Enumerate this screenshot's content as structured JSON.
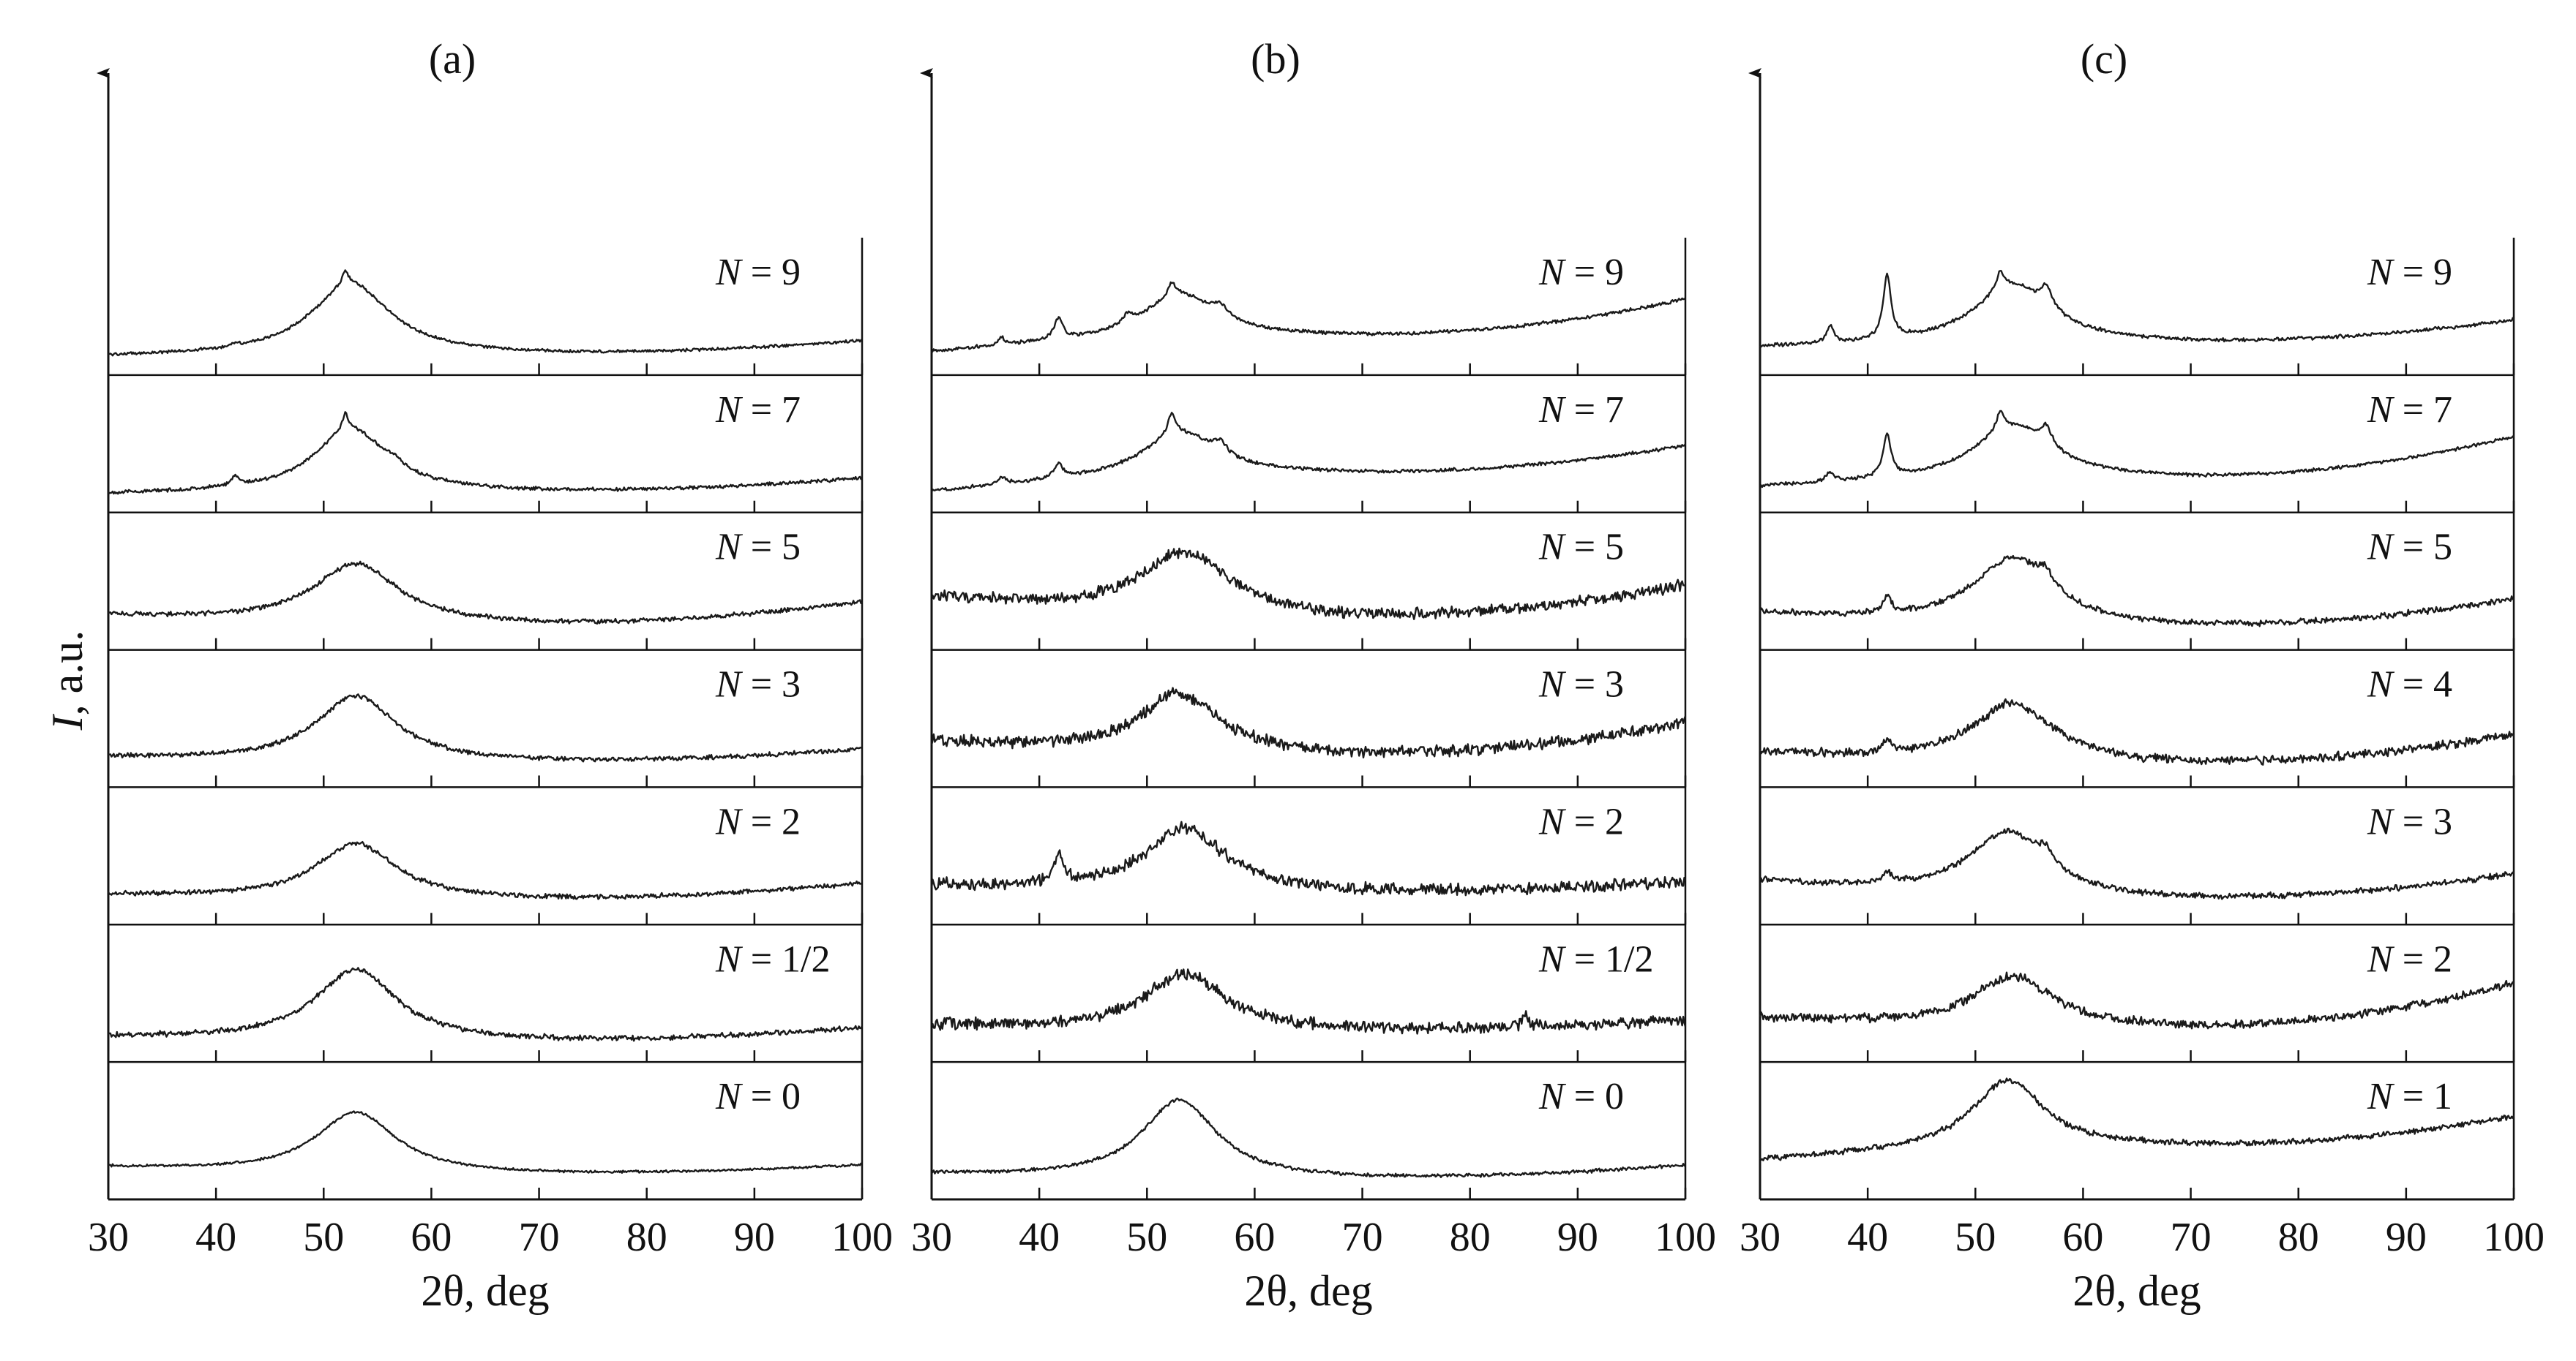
{
  "chart_data": {
    "type": "line",
    "ylabel_italic": "I",
    "ylabel_rest": ", a.u.",
    "xlabel": "2θ, deg",
    "xlim": [
      30,
      100
    ],
    "xticks": [
      "30",
      "40",
      "50",
      "60",
      "70",
      "80",
      "90",
      "100"
    ],
    "color": "#1a1a1a",
    "panels": [
      {
        "title": "(a)",
        "rows": [
          {
            "label": "N = 9",
            "noise": 0.01,
            "base": [
              0.08,
              0.1,
              0.22
            ],
            "peaks": [
              {
                "x": 52.5,
                "h": 0.62,
                "w": 4.5
              },
              {
                "x": 52.0,
                "h": 0.12,
                "w": 0.35
              },
              {
                "x": 41.8,
                "h": 0.03,
                "w": 0.4
              }
            ]
          },
          {
            "label": "N = 7",
            "noise": 0.012,
            "base": [
              0.08,
              0.1,
              0.22
            ],
            "peaks": [
              {
                "x": 52.5,
                "h": 0.55,
                "w": 4.2
              },
              {
                "x": 52.0,
                "h": 0.14,
                "w": 0.35
              },
              {
                "x": 41.8,
                "h": 0.08,
                "w": 0.5
              },
              {
                "x": 56.5,
                "h": 0.05,
                "w": 0.8
              }
            ]
          },
          {
            "label": "N = 5",
            "noise": 0.016,
            "base": [
              0.22,
              0.14,
              0.34
            ],
            "peaks": [
              {
                "x": 53.0,
                "h": 0.52,
                "w": 4.8
              }
            ]
          },
          {
            "label": "N = 3",
            "noise": 0.016,
            "base": [
              0.18,
              0.14,
              0.25
            ],
            "peaks": [
              {
                "x": 53.0,
                "h": 0.57,
                "w": 4.5
              }
            ]
          },
          {
            "label": "N = 2",
            "noise": 0.016,
            "base": [
              0.18,
              0.14,
              0.28
            ],
            "peaks": [
              {
                "x": 53.0,
                "h": 0.48,
                "w": 4.5
              }
            ]
          },
          {
            "label": "N = 1/2",
            "noise": 0.018,
            "base": [
              0.14,
              0.1,
              0.22
            ],
            "peaks": [
              {
                "x": 53.0,
                "h": 0.62,
                "w": 4.6
              }
            ]
          },
          {
            "label": "N = 0",
            "noise": 0.008,
            "base": [
              0.2,
              0.14,
              0.22
            ],
            "peaks": [
              {
                "x": 53.0,
                "h": 0.53,
                "w": 4.5
              }
            ]
          }
        ]
      },
      {
        "title": "(b)",
        "rows": [
          {
            "label": "N = 9",
            "noise": 0.012,
            "base": [
              0.12,
              0.26,
              0.58
            ],
            "peaks": [
              {
                "x": 53.0,
                "h": 0.38,
                "w": 4.2
              },
              {
                "x": 52.3,
                "h": 0.12,
                "w": 0.4
              },
              {
                "x": 41.8,
                "h": 0.18,
                "w": 0.5
              },
              {
                "x": 36.5,
                "h": 0.06,
                "w": 0.4
              },
              {
                "x": 48.2,
                "h": 0.08,
                "w": 0.5
              },
              {
                "x": 56.8,
                "h": 0.1,
                "w": 0.8
              }
            ]
          },
          {
            "label": "N = 7",
            "noise": 0.012,
            "base": [
              0.1,
              0.26,
              0.5
            ],
            "peaks": [
              {
                "x": 53.0,
                "h": 0.38,
                "w": 4.2
              },
              {
                "x": 52.3,
                "h": 0.18,
                "w": 0.4
              },
              {
                "x": 41.8,
                "h": 0.12,
                "w": 0.5
              },
              {
                "x": 36.5,
                "h": 0.06,
                "w": 0.4
              },
              {
                "x": 56.8,
                "h": 0.1,
                "w": 0.8
              }
            ]
          },
          {
            "label": "N = 5",
            "noise": 0.04,
            "base": [
              0.38,
              0.2,
              0.48
            ],
            "peaks": [
              {
                "x": 53.5,
                "h": 0.55,
                "w": 5.0
              }
            ]
          },
          {
            "label": "N = 3",
            "noise": 0.04,
            "base": [
              0.32,
              0.2,
              0.48
            ],
            "peaks": [
              {
                "x": 53.0,
                "h": 0.52,
                "w": 4.5
              }
            ]
          },
          {
            "label": "N = 2",
            "noise": 0.04,
            "base": [
              0.26,
              0.2,
              0.3
            ],
            "peaks": [
              {
                "x": 53.5,
                "h": 0.55,
                "w": 4.5
              },
              {
                "x": 41.8,
                "h": 0.26,
                "w": 0.5
              }
            ]
          },
          {
            "label": "N = 1/2",
            "noise": 0.04,
            "base": [
              0.24,
              0.2,
              0.28
            ],
            "peaks": [
              {
                "x": 53.5,
                "h": 0.48,
                "w": 4.5
              },
              {
                "x": 85.2,
                "h": 0.12,
                "w": 0.3
              }
            ]
          },
          {
            "label": "N = 0",
            "noise": 0.012,
            "base": [
              0.14,
              0.1,
              0.22
            ],
            "peaks": [
              {
                "x": 53.0,
                "h": 0.68,
                "w": 4.2
              }
            ]
          }
        ]
      },
      {
        "title": "(c)",
        "rows": [
          {
            "label": "N = 9",
            "noise": 0.012,
            "base": [
              0.16,
              0.2,
              0.4
            ],
            "peaks": [
              {
                "x": 53.5,
                "h": 0.5,
                "w": 4.5
              },
              {
                "x": 52.3,
                "h": 0.16,
                "w": 0.45
              },
              {
                "x": 41.8,
                "h": 0.55,
                "w": 0.45
              },
              {
                "x": 36.5,
                "h": 0.14,
                "w": 0.4
              },
              {
                "x": 56.6,
                "h": 0.18,
                "w": 0.6
              }
            ]
          },
          {
            "label": "N = 7",
            "noise": 0.012,
            "base": [
              0.14,
              0.22,
              0.58
            ],
            "peaks": [
              {
                "x": 53.5,
                "h": 0.46,
                "w": 4.5
              },
              {
                "x": 52.3,
                "h": 0.16,
                "w": 0.45
              },
              {
                "x": 41.8,
                "h": 0.36,
                "w": 0.45
              },
              {
                "x": 36.5,
                "h": 0.08,
                "w": 0.4
              },
              {
                "x": 56.6,
                "h": 0.16,
                "w": 0.6
              }
            ]
          },
          {
            "label": "N = 5",
            "noise": 0.02,
            "base": [
              0.24,
              0.12,
              0.36
            ],
            "peaks": [
              {
                "x": 53.5,
                "h": 0.58,
                "w": 4.6
              },
              {
                "x": 41.8,
                "h": 0.14,
                "w": 0.45
              },
              {
                "x": 56.5,
                "h": 0.12,
                "w": 0.8
              }
            ]
          },
          {
            "label": "N = 4",
            "noise": 0.03,
            "base": [
              0.22,
              0.12,
              0.38
            ],
            "peaks": [
              {
                "x": 53.5,
                "h": 0.52,
                "w": 4.6
              },
              {
                "x": 41.8,
                "h": 0.12,
                "w": 0.45
              }
            ]
          },
          {
            "label": "N = 3",
            "noise": 0.02,
            "base": [
              0.3,
              0.14,
              0.36
            ],
            "peaks": [
              {
                "x": 53.0,
                "h": 0.56,
                "w": 4.5
              },
              {
                "x": 41.8,
                "h": 0.1,
                "w": 0.45
              },
              {
                "x": 56.5,
                "h": 0.12,
                "w": 0.8
              }
            ]
          },
          {
            "label": "N = 2",
            "noise": 0.03,
            "base": [
              0.3,
              0.22,
              0.6
            ],
            "peaks": [
              {
                "x": 53.5,
                "h": 0.44,
                "w": 4.5
              }
            ]
          },
          {
            "label": "N = 1",
            "noise": 0.02,
            "base": [
              0.26,
              0.38,
              0.64
            ],
            "peaks": [
              {
                "x": 53.0,
                "h": 0.6,
                "w": 4.0
              }
            ]
          }
        ]
      }
    ]
  }
}
